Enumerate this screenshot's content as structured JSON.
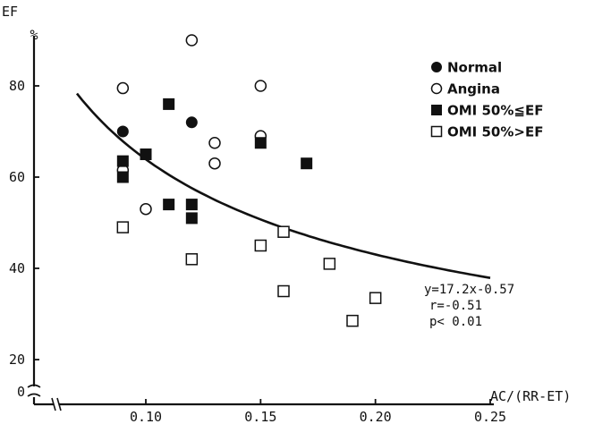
{
  "chart_data": {
    "type": "scatter",
    "title": "",
    "ylabel": "EF",
    "yunit": "%",
    "xlabel": "AC/(RR-ET)",
    "xlim": [
      0.05,
      0.25
    ],
    "ylim": [
      0,
      92
    ],
    "xticks": [
      {
        "value": 0.1,
        "label": "0.10"
      },
      {
        "value": 0.15,
        "label": "0.15"
      },
      {
        "value": 0.2,
        "label": "0.20"
      },
      {
        "value": 0.25,
        "label": "0.25"
      }
    ],
    "yticks": [
      {
        "value": 0,
        "label": "0"
      },
      {
        "value": 20,
        "label": "20"
      },
      {
        "value": 40,
        "label": "40"
      },
      {
        "value": 60,
        "label": "60"
      },
      {
        "value": 80,
        "label": "80"
      }
    ],
    "axis_break": "y",
    "grid": false,
    "legend_position": "top-right",
    "series": [
      {
        "name": "Normal",
        "marker": "filled-circle",
        "points": [
          [
            0.09,
            70
          ],
          [
            0.12,
            72
          ]
        ]
      },
      {
        "name": "Angina",
        "marker": "open-circle",
        "points": [
          [
            0.09,
            79.5
          ],
          [
            0.09,
            61.5
          ],
          [
            0.1,
            53
          ],
          [
            0.12,
            90
          ],
          [
            0.13,
            67.5
          ],
          [
            0.13,
            63
          ],
          [
            0.15,
            80
          ],
          [
            0.15,
            69
          ]
        ]
      },
      {
        "name": "OMI 50%≦EF",
        "marker": "filled-square",
        "points": [
          [
            0.09,
            63.5
          ],
          [
            0.09,
            60
          ],
          [
            0.1,
            65
          ],
          [
            0.11,
            76
          ],
          [
            0.11,
            54
          ],
          [
            0.12,
            54
          ],
          [
            0.12,
            51
          ],
          [
            0.15,
            67.5
          ],
          [
            0.17,
            63
          ]
        ]
      },
      {
        "name": "OMI 50%>EF",
        "marker": "open-square",
        "points": [
          [
            0.09,
            49
          ],
          [
            0.12,
            42
          ],
          [
            0.15,
            45
          ],
          [
            0.16,
            48
          ],
          [
            0.16,
            35
          ],
          [
            0.18,
            41
          ],
          [
            0.19,
            28.5
          ],
          [
            0.2,
            33.5
          ]
        ]
      }
    ],
    "fit": {
      "equation_lines": [
        "y=17.2x-0.57",
        "r=-0.51",
        "p< 0.01"
      ],
      "coefficient": 17.2,
      "exponent": -0.57,
      "x_range": [
        0.07,
        0.25
      ]
    }
  }
}
